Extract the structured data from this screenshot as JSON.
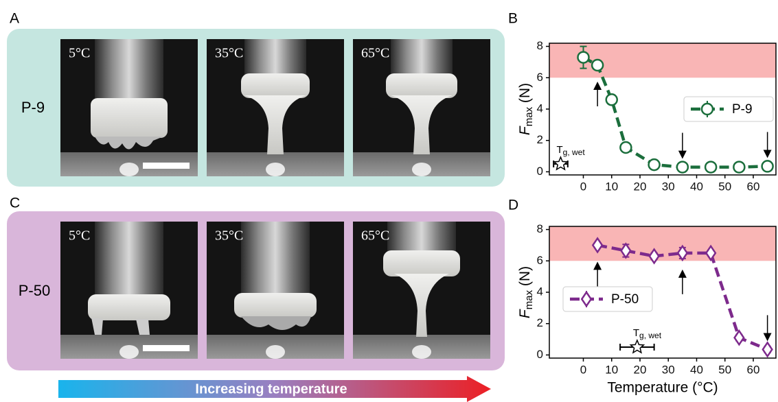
{
  "panel_labels": [
    "A",
    "B",
    "C",
    "D"
  ],
  "photo_panels": [
    {
      "sample": "P-9",
      "temps": [
        "5°C",
        "35°C",
        "65°C"
      ]
    },
    {
      "sample": "P-50",
      "temps": [
        "5°C",
        "35°C",
        "65°C"
      ]
    }
  ],
  "arrow_text": "Increasing temperature",
  "chart_data": [
    {
      "type": "line",
      "x": [
        0,
        5,
        10,
        15,
        25,
        35,
        45,
        55,
        65
      ],
      "series": [
        {
          "name": "P-9",
          "color": "#1b6e3c",
          "marker": "circle",
          "values": [
            7.3,
            6.8,
            4.6,
            1.55,
            0.45,
            0.3,
            0.3,
            0.3,
            0.35
          ],
          "errors": [
            0.7,
            0.2,
            0.2,
            0.15,
            0.1,
            0.05,
            0.05,
            0.05,
            0.1
          ]
        }
      ],
      "tg": {
        "x": -8,
        "y": 0.5,
        "xerr": 2.5,
        "label_main": "T",
        "label_sub": "g, wet"
      },
      "xlim": [
        -12,
        68
      ],
      "ylim": [
        -0.2,
        8.2
      ],
      "xticks": [
        0,
        10,
        20,
        30,
        40,
        50,
        60
      ],
      "yticks": [
        0,
        2,
        4,
        6,
        8
      ],
      "ylabel_main": "F",
      "ylabel_sub": "max",
      "ylabel_unit": "(N)",
      "shade": [
        6,
        8.2
      ],
      "shade_color": "#f9b5b5",
      "arrows_x": [
        5,
        35,
        65
      ],
      "arrows_dir": [
        "up",
        "down",
        "down"
      ],
      "legend": "center right"
    },
    {
      "type": "line",
      "x": [
        5,
        15,
        25,
        35,
        45,
        55,
        65
      ],
      "series": [
        {
          "name": "P-50",
          "color": "#7d2a8c",
          "marker": "diamond",
          "values": [
            7.0,
            6.65,
            6.3,
            6.5,
            6.5,
            1.1,
            0.35
          ],
          "errors": [
            0.15,
            0.4,
            0.2,
            0.35,
            0.15,
            0.2,
            0.2
          ]
        }
      ],
      "tg": {
        "x": 19,
        "y": 0.5,
        "xerr": 6,
        "label_main": "T",
        "label_sub": "g, wet"
      },
      "xlim": [
        -12,
        68
      ],
      "ylim": [
        -0.2,
        8.2
      ],
      "xticks": [
        0,
        10,
        20,
        30,
        40,
        50,
        60
      ],
      "yticks": [
        0,
        2,
        4,
        6,
        8
      ],
      "ylabel_main": "F",
      "ylabel_sub": "max",
      "ylabel_unit": "(N)",
      "xlabel": "Temperature (°C)",
      "shade": [
        6,
        8.2
      ],
      "shade_color": "#f9b5b5",
      "arrows_x": [
        5,
        35,
        65
      ],
      "arrows_dir": [
        "up",
        "up",
        "down"
      ],
      "legend": "center left"
    }
  ]
}
